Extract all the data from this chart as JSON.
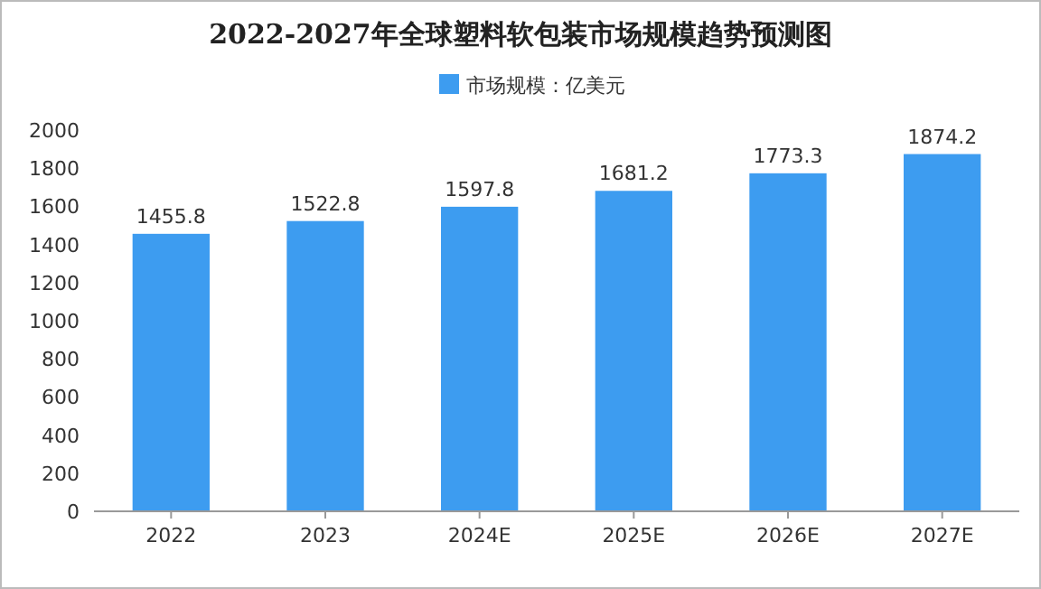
{
  "chart_data": {
    "type": "bar",
    "title": "2022-2027年全球塑料软包装市场规模趋势预测图",
    "categories": [
      "2022",
      "2023",
      "2024E",
      "2025E",
      "2026E",
      "2027E"
    ],
    "series": [
      {
        "name": "市场规模：亿美元",
        "color": "#3d9cf0",
        "values": [
          1455.8,
          1522.8,
          1597.8,
          1681.2,
          1773.3,
          1874.2
        ]
      }
    ],
    "ylim": [
      0,
      2000
    ],
    "yticks": [
      0,
      200,
      400,
      600,
      800,
      1000,
      1200,
      1400,
      1600,
      1800,
      2000
    ],
    "data_labels": true,
    "legend": "top",
    "grid": false
  }
}
